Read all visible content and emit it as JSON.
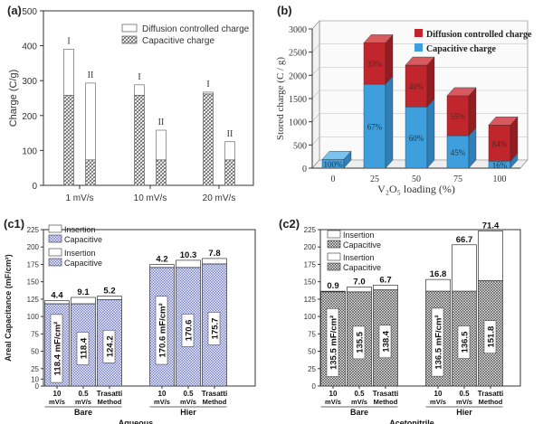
{
  "chart_data": [
    {
      "panel": "(a)",
      "type": "bar",
      "stacked": true,
      "ylabel": "Charge (C/g)",
      "ylim": [
        0,
        500
      ],
      "yticks": [
        "0",
        "100",
        "200",
        "300",
        "400",
        "500"
      ],
      "categories": [
        "1 mV/s",
        "10 mV/s",
        "20 mV/s"
      ],
      "bar_labels": [
        "I",
        "II"
      ],
      "legend": {
        "position": "top-right",
        "entries": [
          "Diffusion controlled charge",
          "Capacitive charge"
        ]
      },
      "series": [
        {
          "name": "Capacitive charge",
          "I": [
            258,
            258,
            262
          ],
          "II": [
            73,
            73,
            73
          ]
        },
        {
          "name": "Diffusion controlled charge",
          "I": [
            132,
            30,
            5
          ],
          "II": [
            220,
            85,
            52
          ]
        }
      ]
    },
    {
      "panel": "(b)",
      "type": "bar",
      "stacked": true,
      "three_d": true,
      "xlabel": "V₂O₅ loading (%)",
      "ylabel": "Stored charge (C / g)",
      "ylim": [
        0,
        3000
      ],
      "yticks": [
        "0",
        "500",
        "1000",
        "1500",
        "2000",
        "2500",
        "3000"
      ],
      "categories": [
        "0",
        "25",
        "50",
        "75",
        "100"
      ],
      "legend": {
        "position": "top-right",
        "entries": [
          "Diffusion controlled charge",
          "Capacitive charge"
        ]
      },
      "colors": {
        "capacitive": "#3f9fdc",
        "diffusion": "#c0262b"
      },
      "series": [
        {
          "name": "Capacitive charge",
          "values": [
            190,
            1810,
            1320,
            700,
            150
          ],
          "labels": [
            "100%",
            "67%",
            "60%",
            "45%",
            "16%"
          ]
        },
        {
          "name": "Diffusion controlled charge",
          "values": [
            0,
            890,
            900,
            860,
            780
          ],
          "labels": [
            "",
            "33%",
            "40%",
            "55%",
            "84%"
          ]
        }
      ]
    },
    {
      "panel": "(c1)",
      "type": "bar",
      "stacked": true,
      "ylabel": "Areal Capacitance (mF/cm²)",
      "ylim": [
        0,
        225
      ],
      "yticks": [
        "0",
        "10",
        "25",
        "50",
        "75",
        "100",
        "125",
        "150",
        "175",
        "200",
        "225"
      ],
      "group_title": "Aqueous",
      "groups": [
        {
          "name": "Bare",
          "categories": [
            [
              "10",
              "mV/s"
            ],
            [
              "0.5",
              "mV/s"
            ],
            [
              "Trasatti",
              "Method"
            ]
          ],
          "capacitive": [
            118.4,
            118.4,
            124.2
          ],
          "insertion": [
            4.4,
            9.1,
            5.2
          ],
          "capacitive_labels": [
            "118.4 mF/cm²",
            "118.4",
            "124.2"
          ],
          "insertion_labels": [
            "4.4",
            "9.1",
            "5.2"
          ]
        },
        {
          "name": "Hier",
          "categories": [
            [
              "10",
              "mV/s"
            ],
            [
              "0.5",
              "mV/s"
            ],
            [
              "Trasatti",
              "Method"
            ]
          ],
          "capacitive": [
            170.6,
            170.6,
            175.7
          ],
          "insertion": [
            4.2,
            10.3,
            7.8
          ],
          "capacitive_labels": [
            "170.6 mF/cm²",
            "170.6",
            "175.7"
          ],
          "insertion_labels": [
            "4.2",
            "10.3",
            "7.8"
          ]
        }
      ],
      "legends": [
        [
          "Insertion",
          "Capacitive"
        ],
        [
          "Insertion",
          "Capacitive"
        ]
      ]
    },
    {
      "panel": "(c2)",
      "type": "bar",
      "stacked": true,
      "ylim": [
        0,
        225
      ],
      "yticks": [
        "0",
        "25",
        "50",
        "75",
        "100",
        "125",
        "150",
        "175",
        "200",
        "225"
      ],
      "group_title": "Acetonitrile",
      "groups": [
        {
          "name": "Bare",
          "categories": [
            [
              "10",
              "mV/s"
            ],
            [
              "0.5",
              "mV/s"
            ],
            [
              "Trasatti",
              "Method"
            ]
          ],
          "capacitive": [
            135.5,
            135.5,
            138.4
          ],
          "insertion": [
            0.9,
            7.0,
            6.7
          ],
          "capacitive_labels": [
            "135.5 mF/cm²",
            "135.5",
            "138.4"
          ],
          "insertion_labels": [
            "0.9",
            "7.0",
            "6.7"
          ]
        },
        {
          "name": "Hier",
          "categories": [
            [
              "10",
              "mV/s"
            ],
            [
              "0.5",
              "mV/s"
            ],
            [
              "Trasatti",
              "Method"
            ]
          ],
          "capacitive": [
            136.5,
            136.5,
            151.8
          ],
          "insertion": [
            16.8,
            66.7,
            71.4
          ],
          "capacitive_labels": [
            "136.5 mF/cm²",
            "136.5",
            "151.8"
          ],
          "insertion_labels": [
            "16.8",
            "66.7",
            "71.4"
          ]
        }
      ],
      "legends": [
        [
          "Insertion",
          "Capacitive"
        ],
        [
          "Insertion",
          "Capacitive"
        ]
      ]
    }
  ]
}
